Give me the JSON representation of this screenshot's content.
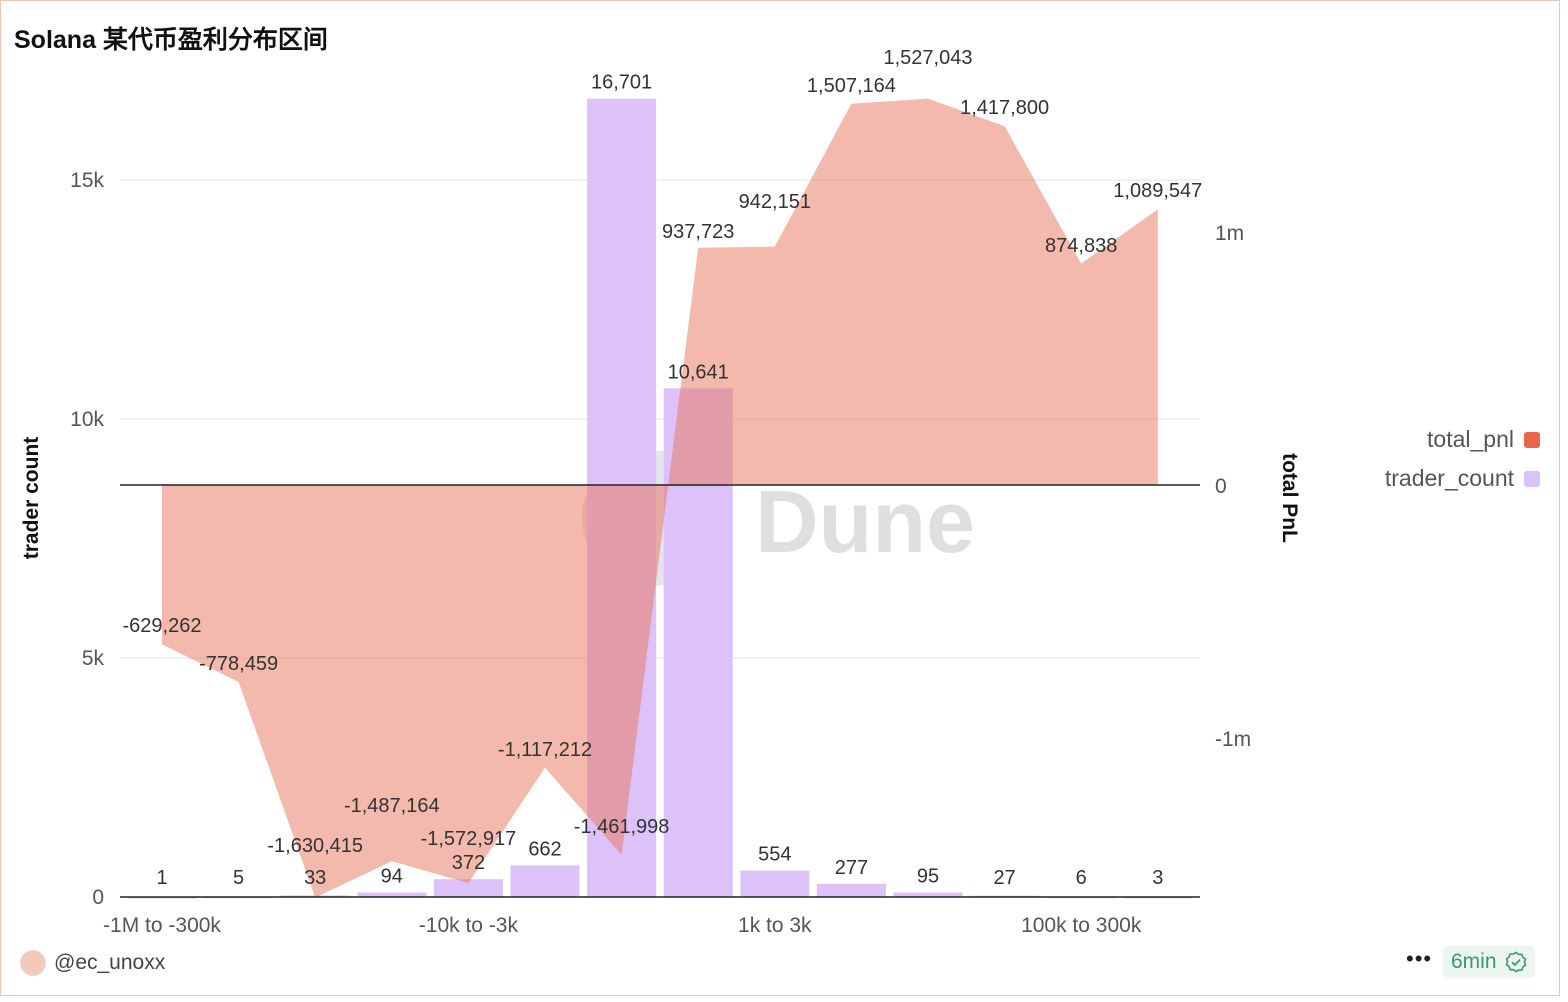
{
  "title": "Solana 某代币盈利分布区间",
  "chart_data": {
    "type": "bar+area",
    "x_tick_labels": [
      {
        "index": 0,
        "label": "-1M to -300k"
      },
      {
        "index": 4,
        "label": "-10k to -3k"
      },
      {
        "index": 8,
        "label": "1k to 3k"
      },
      {
        "index": 12,
        "label": "100k to 300k"
      }
    ],
    "series": [
      {
        "name": "trader_count",
        "type": "bar",
        "axis": "left",
        "color": "#dcc2f8",
        "values": [
          1,
          5,
          33,
          94,
          372,
          662,
          16701,
          10641,
          554,
          277,
          95,
          27,
          6,
          3
        ],
        "labels": [
          "1",
          "5",
          "33",
          "94",
          "372",
          "662",
          "16,701",
          "10,641",
          "554",
          "277",
          "95",
          "27",
          "6",
          "3"
        ]
      },
      {
        "name": "total_pnl",
        "type": "area",
        "axis": "right",
        "color": "#e8735a",
        "values": [
          -629262,
          -778459,
          -1630415,
          -1487164,
          -1572917,
          -1117212,
          -1461998,
          937723,
          942151,
          1507164,
          1527043,
          1417800,
          874838,
          1089547
        ],
        "labels": [
          "-629,262",
          "-778,459",
          "-1,630,415",
          "-1,487,164",
          "-1,572,917",
          "-1,117,212",
          "-1,461,998",
          "937,723",
          "942,151",
          "1,507,164",
          "1,527,043",
          "1,417,800",
          "874,838",
          "1,089,547"
        ]
      }
    ],
    "ylabel": "trader count",
    "y2label": "total PnL",
    "ylim": [
      0,
      17000
    ],
    "y_ticks": [
      {
        "v": 0,
        "label": "0"
      },
      {
        "v": 5000,
        "label": "5k"
      },
      {
        "v": 10000,
        "label": "10k"
      },
      {
        "v": 15000,
        "label": "15k"
      }
    ],
    "y2_ticks": [
      {
        "v": -1000000,
        "label": "-1m"
      },
      {
        "v": 0,
        "label": "0"
      },
      {
        "v": 1000000,
        "label": "1m"
      }
    ],
    "grid": true,
    "legend": "right"
  },
  "legend": {
    "total_pnl": "total_pnl",
    "trader_count": "trader_count"
  },
  "watermark": "Dune",
  "footer": {
    "user": "@ec_unoxx",
    "more": "•••",
    "age": "6min"
  }
}
